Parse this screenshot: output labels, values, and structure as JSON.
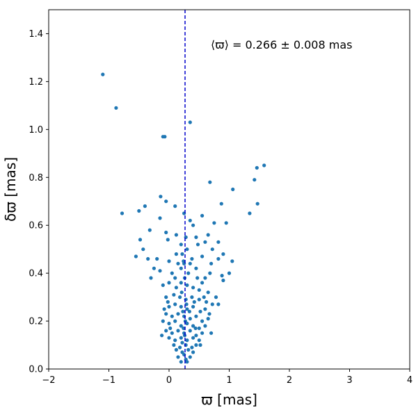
{
  "chart_data": {
    "type": "scatter",
    "title": "",
    "xlabel": "ϖ [mas]",
    "ylabel": "δϖ [mas]",
    "xlim": [
      -2,
      4
    ],
    "ylim": [
      0,
      1.5
    ],
    "xticks": [
      -2,
      -1,
      0,
      1,
      2,
      3,
      4
    ],
    "xtick_labels": [
      "−2",
      "−1",
      "0",
      "1",
      "2",
      "3",
      "4"
    ],
    "yticks": [
      0.0,
      0.2,
      0.4,
      0.6,
      0.8,
      1.0,
      1.2,
      1.4
    ],
    "ytick_labels": [
      "0.0",
      "0.2",
      "0.4",
      "0.6",
      "0.8",
      "1.0",
      "1.2",
      "1.4"
    ],
    "grid": false,
    "point_color": "#1f77b4",
    "mean_line": {
      "x": 0.266,
      "color": "#0000cc",
      "style": "dashed"
    },
    "annotation": "⟨ϖ⟩ = 0.266 ± 0.008 mas",
    "series": [
      {
        "points": [
          [
            -1.1,
            1.23
          ],
          [
            -0.88,
            1.09
          ],
          [
            -0.1,
            0.97
          ],
          [
            -0.07,
            0.97
          ],
          [
            0.35,
            1.03
          ],
          [
            1.58,
            0.85
          ],
          [
            1.46,
            0.84
          ],
          [
            1.42,
            0.79
          ],
          [
            1.06,
            0.75
          ],
          [
            0.68,
            0.78
          ],
          [
            0.87,
            0.69
          ],
          [
            1.47,
            0.69
          ],
          [
            -0.78,
            0.65
          ],
          [
            -0.5,
            0.66
          ],
          [
            -0.4,
            0.68
          ],
          [
            -0.14,
            0.72
          ],
          [
            -0.05,
            0.7
          ],
          [
            0.1,
            0.68
          ],
          [
            0.25,
            0.65
          ],
          [
            -0.15,
            0.63
          ],
          [
            0.35,
            0.62
          ],
          [
            0.4,
            0.6
          ],
          [
            1.34,
            0.65
          ],
          [
            0.55,
            0.64
          ],
          [
            0.75,
            0.61
          ],
          [
            0.95,
            0.61
          ],
          [
            -0.32,
            0.58
          ],
          [
            -0.05,
            0.57
          ],
          [
            0.12,
            0.56
          ],
          [
            0.28,
            0.55
          ],
          [
            0.45,
            0.55
          ],
          [
            0.65,
            0.56
          ],
          [
            0.82,
            0.53
          ],
          [
            -0.48,
            0.54
          ],
          [
            -0.43,
            0.5
          ],
          [
            -0.02,
            0.54
          ],
          [
            0.2,
            0.52
          ],
          [
            0.3,
            0.5
          ],
          [
            0.48,
            0.52
          ],
          [
            0.6,
            0.53
          ],
          [
            0.72,
            0.5
          ],
          [
            0.9,
            0.48
          ],
          [
            -0.55,
            0.47
          ],
          [
            -0.35,
            0.46
          ],
          [
            -0.2,
            0.46
          ],
          [
            0.0,
            0.45
          ],
          [
            0.15,
            0.44
          ],
          [
            0.22,
            0.48
          ],
          [
            0.38,
            0.46
          ],
          [
            0.55,
            0.47
          ],
          [
            0.7,
            0.44
          ],
          [
            0.82,
            0.46
          ],
          [
            1.05,
            0.45
          ],
          [
            0.25,
            0.44
          ],
          [
            -0.3,
            0.38
          ],
          [
            -0.15,
            0.41
          ],
          [
            0.05,
            0.4
          ],
          [
            0.1,
            0.38
          ],
          [
            0.2,
            0.42
          ],
          [
            0.32,
            0.4
          ],
          [
            0.45,
            0.42
          ],
          [
            0.6,
            0.38
          ],
          [
            0.88,
            0.39
          ],
          [
            1.0,
            0.4
          ],
          [
            0.9,
            0.37
          ],
          [
            -0.1,
            0.35
          ],
          [
            0.0,
            0.36
          ],
          [
            0.12,
            0.34
          ],
          [
            0.2,
            0.36
          ],
          [
            0.3,
            0.35
          ],
          [
            0.4,
            0.34
          ],
          [
            0.5,
            0.33
          ],
          [
            0.65,
            0.32
          ],
          [
            0.78,
            0.3
          ],
          [
            -0.05,
            0.3
          ],
          [
            0.08,
            0.31
          ],
          [
            0.18,
            0.3
          ],
          [
            0.28,
            0.29
          ],
          [
            0.38,
            0.3
          ],
          [
            0.5,
            0.29
          ],
          [
            0.62,
            0.28
          ],
          [
            0.72,
            0.27
          ],
          [
            0.82,
            0.27
          ],
          [
            0.0,
            0.26
          ],
          [
            0.1,
            0.27
          ],
          [
            0.2,
            0.26
          ],
          [
            0.3,
            0.25
          ],
          [
            0.4,
            0.26
          ],
          [
            0.52,
            0.24
          ],
          [
            0.6,
            0.25
          ],
          [
            -0.05,
            0.23
          ],
          [
            0.05,
            0.22
          ],
          [
            0.15,
            0.23
          ],
          [
            0.25,
            0.22
          ],
          [
            0.35,
            0.21
          ],
          [
            0.45,
            0.22
          ],
          [
            0.55,
            0.2
          ],
          [
            0.65,
            0.21
          ],
          [
            -0.1,
            0.2
          ],
          [
            0.0,
            0.19
          ],
          [
            0.1,
            0.2
          ],
          [
            0.2,
            0.18
          ],
          [
            0.3,
            0.19
          ],
          [
            0.4,
            0.18
          ],
          [
            0.5,
            0.17
          ],
          [
            0.6,
            0.18
          ],
          [
            -0.05,
            0.16
          ],
          [
            0.05,
            0.15
          ],
          [
            0.15,
            0.16
          ],
          [
            0.25,
            0.15
          ],
          [
            0.35,
            0.16
          ],
          [
            0.45,
            0.14
          ],
          [
            0.55,
            0.15
          ],
          [
            0.0,
            0.13
          ],
          [
            0.1,
            0.12
          ],
          [
            0.2,
            0.13
          ],
          [
            0.3,
            0.12
          ],
          [
            0.4,
            0.13
          ],
          [
            0.5,
            0.12
          ],
          [
            0.08,
            0.1
          ],
          [
            0.18,
            0.09
          ],
          [
            0.28,
            0.1
          ],
          [
            0.38,
            0.09
          ],
          [
            0.45,
            0.1
          ],
          [
            0.12,
            0.08
          ],
          [
            0.22,
            0.07
          ],
          [
            0.32,
            0.08
          ],
          [
            0.4,
            0.07
          ],
          [
            0.15,
            0.05
          ],
          [
            0.25,
            0.06
          ],
          [
            0.35,
            0.05
          ],
          [
            0.2,
            0.03
          ],
          [
            0.3,
            0.03
          ],
          [
            0.28,
            0.04
          ],
          [
            0.22,
            0.11
          ],
          [
            0.26,
            0.14
          ],
          [
            0.24,
            0.17
          ],
          [
            0.27,
            0.2
          ],
          [
            0.23,
            0.24
          ],
          [
            0.29,
            0.27
          ],
          [
            0.21,
            0.32
          ],
          [
            0.26,
            0.38
          ],
          [
            0.24,
            0.45
          ],
          [
            -0.02,
            0.28
          ],
          [
            0.42,
            0.28
          ],
          [
            0.55,
            0.36
          ],
          [
            0.68,
            0.4
          ],
          [
            -0.25,
            0.42
          ],
          [
            0.12,
            0.48
          ],
          [
            0.35,
            0.44
          ],
          [
            0.47,
            0.38
          ],
          [
            0.58,
            0.3
          ],
          [
            0.67,
            0.23
          ],
          [
            0.7,
            0.15
          ],
          [
            -0.12,
            0.14
          ],
          [
            -0.08,
            0.25
          ],
          [
            0.02,
            0.17
          ],
          [
            0.34,
            0.24
          ],
          [
            0.44,
            0.17
          ],
          [
            0.52,
            0.1
          ]
        ]
      }
    ]
  }
}
